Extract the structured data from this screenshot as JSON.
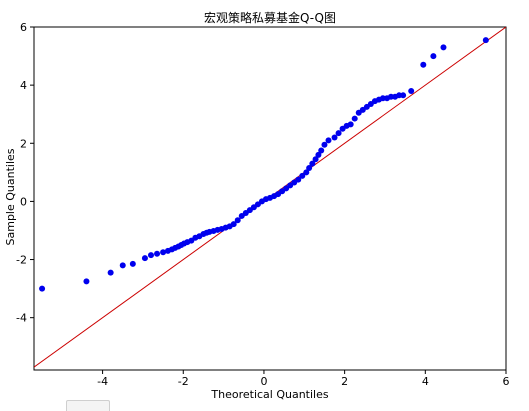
{
  "chart_data": {
    "type": "scatter",
    "title": "宏观策略私募基金Q-Q图",
    "xlabel": "Theoretical Quantiles",
    "ylabel": "Sample Quantiles",
    "xlim": [
      -5.7,
      6.0
    ],
    "ylim": [
      -5.8,
      6.0
    ],
    "x_ticks": [
      -4,
      -2,
      0,
      2,
      4,
      6
    ],
    "y_ticks": [
      -4,
      -2,
      0,
      2,
      4,
      6
    ],
    "grid": false,
    "reference_line": {
      "color": "#cc0000",
      "slope": 1,
      "intercept": 0
    },
    "marker_color": "#0000ee",
    "points": [
      [
        -5.5,
        -3.0
      ],
      [
        -4.4,
        -2.75
      ],
      [
        -3.8,
        -2.45
      ],
      [
        -3.5,
        -2.2
      ],
      [
        -3.25,
        -2.15
      ],
      [
        -2.95,
        -1.95
      ],
      [
        -2.8,
        -1.85
      ],
      [
        -2.65,
        -1.8
      ],
      [
        -2.5,
        -1.75
      ],
      [
        -2.38,
        -1.7
      ],
      [
        -2.28,
        -1.65
      ],
      [
        -2.2,
        -1.6
      ],
      [
        -2.12,
        -1.55
      ],
      [
        -2.05,
        -1.5
      ],
      [
        -1.98,
        -1.45
      ],
      [
        -1.9,
        -1.4
      ],
      [
        -1.8,
        -1.35
      ],
      [
        -1.7,
        -1.25
      ],
      [
        -1.6,
        -1.2
      ],
      [
        -1.5,
        -1.12
      ],
      [
        -1.42,
        -1.08
      ],
      [
        -1.35,
        -1.05
      ],
      [
        -1.25,
        -1.02
      ],
      [
        -1.15,
        -0.98
      ],
      [
        -1.05,
        -0.95
      ],
      [
        -0.95,
        -0.9
      ],
      [
        -0.85,
        -0.86
      ],
      [
        -0.75,
        -0.78
      ],
      [
        -0.65,
        -0.65
      ],
      [
        -0.55,
        -0.5
      ],
      [
        -0.45,
        -0.4
      ],
      [
        -0.35,
        -0.3
      ],
      [
        -0.25,
        -0.2
      ],
      [
        -0.15,
        -0.1
      ],
      [
        -0.05,
        0.0
      ],
      [
        0.05,
        0.08
      ],
      [
        0.15,
        0.12
      ],
      [
        0.25,
        0.18
      ],
      [
        0.35,
        0.25
      ],
      [
        0.45,
        0.35
      ],
      [
        0.55,
        0.45
      ],
      [
        0.65,
        0.55
      ],
      [
        0.75,
        0.65
      ],
      [
        0.85,
        0.75
      ],
      [
        0.95,
        0.88
      ],
      [
        1.05,
        1.0
      ],
      [
        1.12,
        1.15
      ],
      [
        1.2,
        1.3
      ],
      [
        1.28,
        1.45
      ],
      [
        1.35,
        1.6
      ],
      [
        1.42,
        1.75
      ],
      [
        1.5,
        1.95
      ],
      [
        1.6,
        2.1
      ],
      [
        1.75,
        2.2
      ],
      [
        1.85,
        2.35
      ],
      [
        1.95,
        2.5
      ],
      [
        2.05,
        2.6
      ],
      [
        2.15,
        2.65
      ],
      [
        2.25,
        2.85
      ],
      [
        2.35,
        3.05
      ],
      [
        2.45,
        3.15
      ],
      [
        2.55,
        3.25
      ],
      [
        2.65,
        3.35
      ],
      [
        2.75,
        3.45
      ],
      [
        2.85,
        3.5
      ],
      [
        2.95,
        3.55
      ],
      [
        3.05,
        3.55
      ],
      [
        3.15,
        3.6
      ],
      [
        3.25,
        3.6
      ],
      [
        3.35,
        3.65
      ],
      [
        3.45,
        3.65
      ],
      [
        3.65,
        3.8
      ],
      [
        3.95,
        4.7
      ],
      [
        4.2,
        5.0
      ],
      [
        4.45,
        5.3
      ],
      [
        5.5,
        5.55
      ]
    ]
  },
  "toolbar": {
    "fragment_label": ""
  }
}
